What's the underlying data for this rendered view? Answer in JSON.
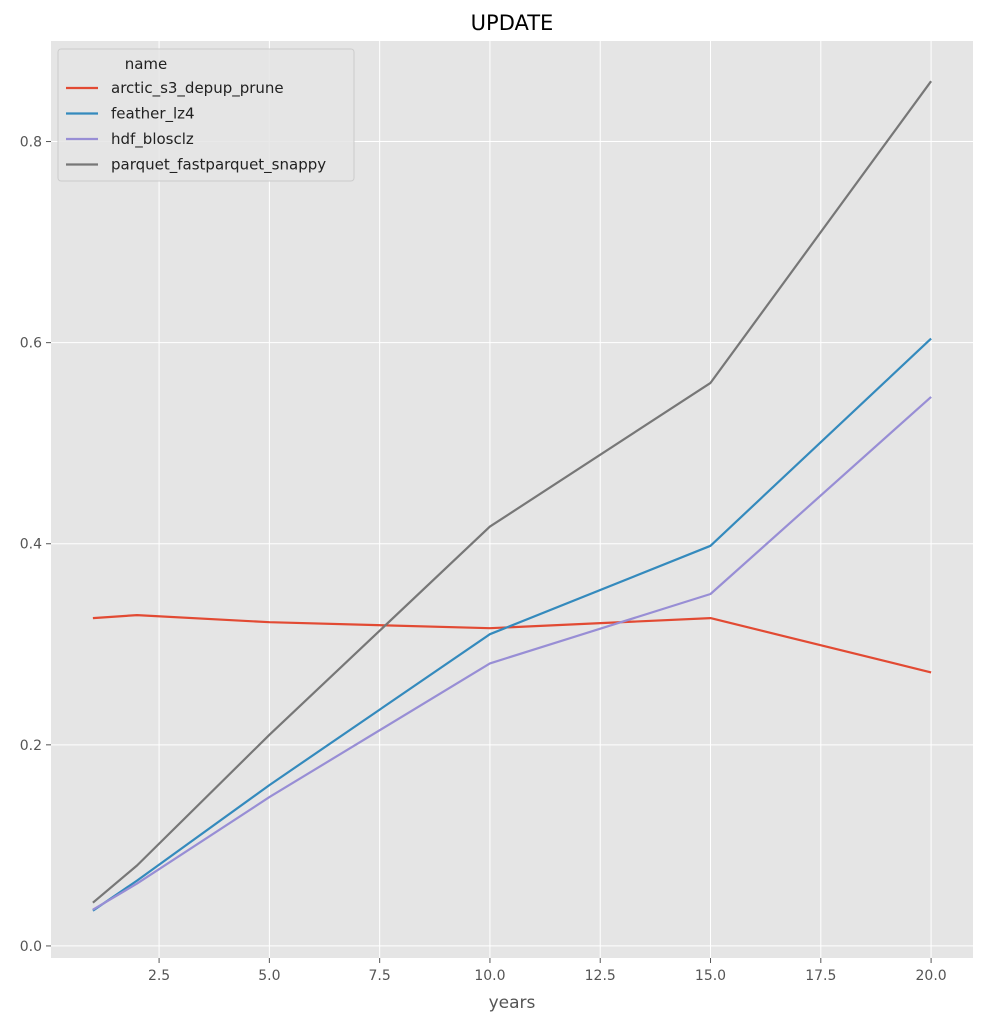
{
  "chart_data": {
    "type": "line",
    "title": "UPDATE",
    "xlabel": "years",
    "ylabel": "",
    "xlim": [
      0.05,
      20.95
    ],
    "ylim": [
      -0.012,
      0.9
    ],
    "xticks": [
      2.5,
      5.0,
      7.5,
      10.0,
      12.5,
      15.0,
      17.5,
      20.0
    ],
    "xtick_labels": [
      "2.5",
      "5.0",
      "7.5",
      "10.0",
      "12.5",
      "15.0",
      "17.5",
      "20.0"
    ],
    "yticks": [
      0.0,
      0.2,
      0.4,
      0.6,
      0.8
    ],
    "ytick_labels": [
      "0.0",
      "0.2",
      "0.4",
      "0.6",
      "0.8"
    ],
    "grid": true,
    "legend": {
      "title": "name",
      "placement": "top-left"
    },
    "x": [
      1,
      2,
      5,
      10,
      15,
      20
    ],
    "series": [
      {
        "name": "arctic_s3_depup_prune",
        "color": "#E24A33",
        "values": [
          0.326,
          0.329,
          0.322,
          0.316,
          0.326,
          0.272
        ]
      },
      {
        "name": "feather_lz4",
        "color": "#348ABD",
        "values": [
          0.035,
          0.065,
          0.16,
          0.31,
          0.398,
          0.604
        ]
      },
      {
        "name": "hdf_blosclz",
        "color": "#988ED5",
        "values": [
          0.036,
          0.062,
          0.148,
          0.281,
          0.35,
          0.546
        ]
      },
      {
        "name": "parquet_fastparquet_snappy",
        "color": "#777777",
        "values": [
          0.043,
          0.08,
          0.21,
          0.417,
          0.56,
          0.86
        ]
      }
    ]
  }
}
